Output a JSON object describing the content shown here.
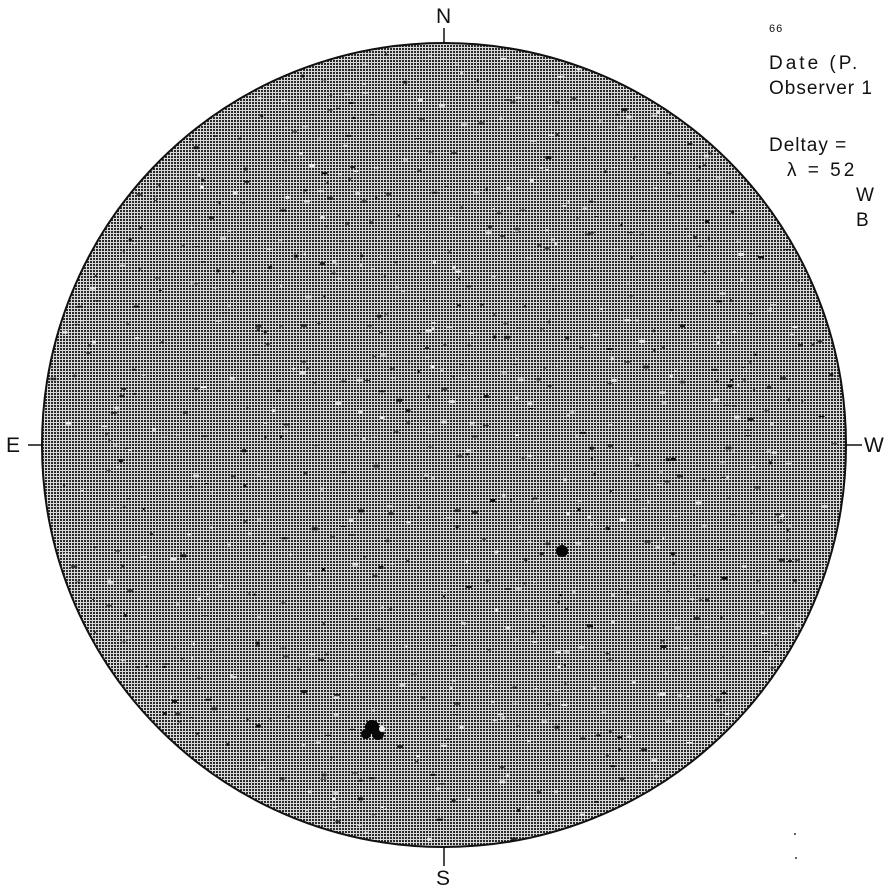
{
  "page_number": "66",
  "compass": {
    "north": "N",
    "south": "S",
    "east": "E",
    "west": "W"
  },
  "notes": {
    "date": "Date (P.",
    "observer": "Observer 1",
    "deltay": "Deltay =",
    "lambda": "λ = 52",
    "w_line": "W",
    "b_line": "B"
  },
  "colors": {
    "disk_base": "#5e5e5e",
    "disk_outline": "#111111",
    "background": "#ffffff",
    "ink": "#111111"
  }
}
